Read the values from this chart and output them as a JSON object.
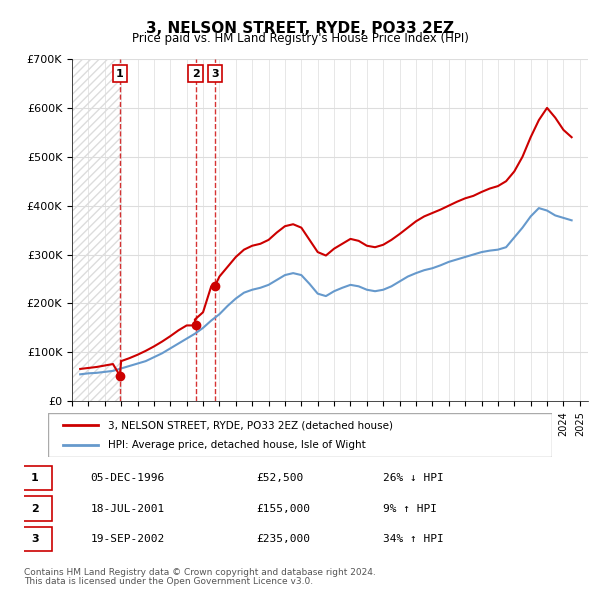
{
  "title": "3, NELSON STREET, RYDE, PO33 2EZ",
  "subtitle": "Price paid vs. HM Land Registry's House Price Index (HPI)",
  "legend_line1": "3, NELSON STREET, RYDE, PO33 2EZ (detached house)",
  "legend_line2": "HPI: Average price, detached house, Isle of Wight",
  "footer1": "Contains HM Land Registry data © Crown copyright and database right 2024.",
  "footer2": "This data is licensed under the Open Government Licence v3.0.",
  "ylim": [
    0,
    700000
  ],
  "yticks": [
    0,
    100000,
    200000,
    300000,
    400000,
    500000,
    600000,
    700000
  ],
  "ytick_labels": [
    "£0",
    "£100K",
    "£200K",
    "£300K",
    "£400K",
    "£500K",
    "£600K",
    "£700K"
  ],
  "xlim_start": 1994.0,
  "xlim_end": 2025.5,
  "transactions": [
    {
      "num": 1,
      "year": 1996.92,
      "price": 52500,
      "date": "05-DEC-1996",
      "pct": "26%",
      "dir": "↓"
    },
    {
      "num": 2,
      "year": 2001.54,
      "price": 155000,
      "date": "18-JUL-2001",
      "pct": "9%",
      "dir": "↑"
    },
    {
      "num": 3,
      "year": 2002.72,
      "price": 235000,
      "date": "19-SEP-2002",
      "pct": "34%",
      "dir": "↑"
    }
  ],
  "red_color": "#cc0000",
  "blue_color": "#6699cc",
  "hpi_years": [
    1994.5,
    1995.0,
    1995.5,
    1996.0,
    1996.5,
    1997.0,
    1997.5,
    1998.0,
    1998.5,
    1999.0,
    1999.5,
    2000.0,
    2000.5,
    2001.0,
    2001.5,
    2002.0,
    2002.5,
    2003.0,
    2003.5,
    2004.0,
    2004.5,
    2005.0,
    2005.5,
    2006.0,
    2006.5,
    2007.0,
    2007.5,
    2008.0,
    2008.5,
    2009.0,
    2009.5,
    2010.0,
    2010.5,
    2011.0,
    2011.5,
    2012.0,
    2012.5,
    2013.0,
    2013.5,
    2014.0,
    2014.5,
    2015.0,
    2015.5,
    2016.0,
    2016.5,
    2017.0,
    2017.5,
    2018.0,
    2018.5,
    2019.0,
    2019.5,
    2020.0,
    2020.5,
    2021.0,
    2021.5,
    2022.0,
    2022.5,
    2023.0,
    2023.5,
    2024.0,
    2024.5
  ],
  "hpi_values": [
    55000,
    57000,
    58000,
    60000,
    62000,
    67000,
    72000,
    77000,
    82000,
    90000,
    98000,
    108000,
    118000,
    128000,
    138000,
    150000,
    165000,
    178000,
    195000,
    210000,
    222000,
    228000,
    232000,
    238000,
    248000,
    258000,
    262000,
    258000,
    240000,
    220000,
    215000,
    225000,
    232000,
    238000,
    235000,
    228000,
    225000,
    228000,
    235000,
    245000,
    255000,
    262000,
    268000,
    272000,
    278000,
    285000,
    290000,
    295000,
    300000,
    305000,
    308000,
    310000,
    315000,
    335000,
    355000,
    378000,
    395000,
    390000,
    380000,
    375000,
    370000
  ],
  "price_years": [
    1994.5,
    1995.0,
    1995.5,
    1996.0,
    1996.5,
    1996.92,
    1997.0,
    1997.5,
    1998.0,
    1998.5,
    1999.0,
    1999.5,
    2000.0,
    2000.5,
    2001.0,
    2001.54,
    2001.5,
    2002.0,
    2002.5,
    2002.72,
    2003.0,
    2003.5,
    2004.0,
    2004.5,
    2005.0,
    2005.5,
    2006.0,
    2006.5,
    2007.0,
    2007.5,
    2008.0,
    2008.5,
    2009.0,
    2009.5,
    2010.0,
    2010.5,
    2011.0,
    2011.5,
    2012.0,
    2012.5,
    2013.0,
    2013.5,
    2014.0,
    2014.5,
    2015.0,
    2015.5,
    2016.0,
    2016.5,
    2017.0,
    2017.5,
    2018.0,
    2018.5,
    2019.0,
    2019.5,
    2020.0,
    2020.5,
    2021.0,
    2021.5,
    2022.0,
    2022.5,
    2023.0,
    2023.5,
    2024.0,
    2024.5
  ],
  "price_values": [
    66000,
    68000,
    70000,
    73000,
    76000,
    52500,
    82000,
    88000,
    95000,
    103000,
    112000,
    122000,
    133000,
    145000,
    155000,
    155000,
    167000,
    182000,
    235000,
    235000,
    255000,
    275000,
    295000,
    310000,
    318000,
    322000,
    330000,
    345000,
    358000,
    362000,
    355000,
    330000,
    305000,
    298000,
    312000,
    322000,
    332000,
    328000,
    318000,
    315000,
    320000,
    330000,
    342000,
    355000,
    368000,
    378000,
    385000,
    392000,
    400000,
    408000,
    415000,
    420000,
    428000,
    435000,
    440000,
    450000,
    470000,
    500000,
    540000,
    575000,
    600000,
    580000,
    555000,
    540000
  ],
  "bg_hatch_color": "#e0e0e0",
  "table_rows": [
    [
      "1",
      "05-DEC-1996",
      "£52,500",
      "26% ↓ HPI"
    ],
    [
      "2",
      "18-JUL-2001",
      "£155,000",
      "9% ↑ HPI"
    ],
    [
      "3",
      "19-SEP-2002",
      "£235,000",
      "34% ↑ HPI"
    ]
  ]
}
